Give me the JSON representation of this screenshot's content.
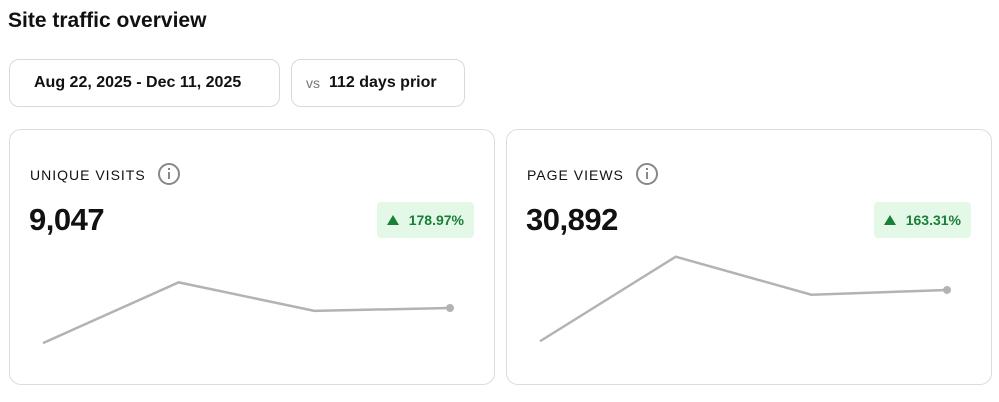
{
  "header": {
    "title": "Site traffic overview"
  },
  "filters": {
    "date_range": "Aug 22, 2025 - Dec 11, 2025",
    "compare_prefix": "vs",
    "compare_period": "112 days prior"
  },
  "cards": [
    {
      "label": "UNIQUE VISITS",
      "value": "9,047",
      "change": "178.97%",
      "sparkline": {
        "values": [
          3,
          67,
          37,
          40
        ],
        "ylim": [
          0,
          100
        ]
      }
    },
    {
      "label": "PAGE VIEWS",
      "value": "30,892",
      "change": "163.31%",
      "sparkline": {
        "values": [
          5,
          94,
          54,
          59
        ],
        "ylim": [
          0,
          100
        ]
      }
    }
  ]
}
